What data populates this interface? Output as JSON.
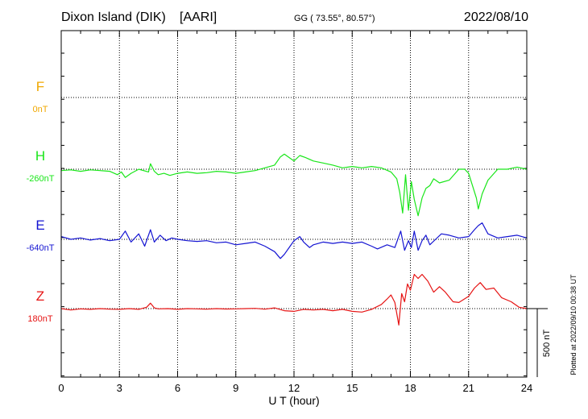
{
  "header": {
    "station": "Dixon Island (DIK)",
    "org": "[AARI]",
    "coords": "GG ( 73.55°,  80.57°)",
    "date": "2022/08/10"
  },
  "plotted_note": "Plotted at 2022/09/10 00:38 UT",
  "scale_label": "500 nT",
  "colors": {
    "F": "#f0a800",
    "H": "#19e619",
    "E": "#1414d2",
    "Z": "#e61414",
    "axis": "#000000",
    "grid": "#000000"
  },
  "chart_data": {
    "type": "line",
    "xlabel": "U T (hour)",
    "xlim": [
      0,
      24
    ],
    "x_ticks": [
      "0",
      "3",
      "6",
      "9",
      "12",
      "15",
      "18",
      "21",
      "24"
    ],
    "grid": true,
    "channels": [
      {
        "name": "F",
        "baseline": "0nT"
      },
      {
        "name": "H",
        "baseline": "-260nT"
      },
      {
        "name": "E",
        "baseline": "-640nT"
      },
      {
        "name": "Z",
        "baseline": "180nT"
      }
    ],
    "series": [
      {
        "name": "H",
        "unit": "nT",
        "x": [
          0,
          0.5,
          1,
          1.5,
          2,
          2.5,
          2.9,
          3.1,
          3.3,
          3.6,
          4,
          4.5,
          4.6,
          4.8,
          5,
          5.3,
          5.6,
          6,
          6.5,
          7,
          7.5,
          8,
          8.5,
          9,
          9.5,
          10,
          10.5,
          11,
          11.3,
          11.5,
          11.8,
          12,
          12.3,
          12.6,
          13,
          13.5,
          14,
          14.5,
          15,
          15.5,
          16,
          16.5,
          17,
          17.3,
          17.45,
          17.6,
          17.75,
          17.9,
          18.05,
          18.2,
          18.4,
          18.6,
          18.8,
          19,
          19.2,
          19.5,
          20,
          20.5,
          20.8,
          21,
          21.2,
          21.4,
          21.5,
          21.7,
          22,
          22.5,
          23,
          23.5,
          24
        ],
        "y": [
          -270,
          -265,
          -275,
          -265,
          -270,
          -275,
          -300,
          -280,
          -320,
          -290,
          -260,
          -280,
          -220,
          -275,
          -300,
          -290,
          -305,
          -290,
          -280,
          -290,
          -285,
          -275,
          -280,
          -290,
          -280,
          -270,
          -250,
          -230,
          -170,
          -150,
          -180,
          -200,
          -160,
          -175,
          -200,
          -215,
          -230,
          -250,
          -240,
          -250,
          -240,
          -250,
          -280,
          -330,
          -430,
          -580,
          -300,
          -560,
          -350,
          -480,
          -600,
          -470,
          -400,
          -380,
          -330,
          -360,
          -340,
          -260,
          -260,
          -290,
          -380,
          -470,
          -550,
          -440,
          -340,
          -260,
          -260,
          -245,
          -260
        ]
      },
      {
        "name": "E",
        "unit": "nT",
        "x": [
          0,
          0.5,
          1,
          1.5,
          2,
          2.5,
          3,
          3.3,
          3.6,
          4,
          4.3,
          4.6,
          4.8,
          5.1,
          5.4,
          5.7,
          6,
          6.5,
          7,
          7.5,
          8,
          8.5,
          9,
          9.5,
          10,
          10.5,
          11,
          11.3,
          11.5,
          11.8,
          12,
          12.3,
          12.5,
          12.8,
          13,
          13.5,
          14,
          14.5,
          15,
          15.5,
          16,
          16.3,
          16.8,
          17.2,
          17.5,
          17.7,
          17.9,
          18.05,
          18.2,
          18.4,
          18.6,
          18.8,
          19,
          19.3,
          19.6,
          20,
          20.5,
          21,
          21.3,
          21.5,
          21.7,
          22,
          22.5,
          23,
          23.5,
          24
        ],
        "y": [
          -620,
          -640,
          -630,
          -645,
          -635,
          -650,
          -640,
          -580,
          -660,
          -600,
          -690,
          -570,
          -660,
          -610,
          -650,
          -630,
          -640,
          -650,
          -655,
          -650,
          -665,
          -660,
          -680,
          -670,
          -660,
          -690,
          -730,
          -780,
          -750,
          -690,
          -650,
          -620,
          -660,
          -700,
          -680,
          -660,
          -670,
          -660,
          -670,
          -660,
          -690,
          -710,
          -680,
          -700,
          -580,
          -720,
          -650,
          -700,
          -580,
          -720,
          -650,
          -610,
          -680,
          -640,
          -600,
          -610,
          -630,
          -620,
          -570,
          -540,
          -520,
          -600,
          -630,
          -620,
          -610,
          -630
        ]
      },
      {
        "name": "Z",
        "unit": "nT",
        "x": [
          0,
          0.5,
          1,
          1.5,
          2,
          2.5,
          3,
          3.5,
          4,
          4.4,
          4.6,
          4.8,
          5,
          5.5,
          6,
          6.5,
          7,
          7.5,
          8,
          8.5,
          9,
          9.5,
          10,
          10.5,
          11,
          11.5,
          12,
          12.5,
          13,
          13.5,
          14,
          14.5,
          15,
          15.5,
          16,
          16.5,
          16.8,
          17,
          17.2,
          17.4,
          17.55,
          17.7,
          17.85,
          18,
          18.2,
          18.4,
          18.6,
          18.9,
          19.2,
          19.5,
          19.8,
          20.2,
          20.5,
          21,
          21.3,
          21.6,
          21.9,
          22.3,
          22.7,
          23.2,
          23.6,
          24
        ],
        "y": [
          180,
          170,
          178,
          175,
          180,
          176,
          175,
          180,
          175,
          190,
          220,
          185,
          178,
          180,
          175,
          180,
          178,
          176,
          180,
          177,
          178,
          180,
          182,
          176,
          185,
          165,
          160,
          175,
          170,
          175,
          165,
          175,
          160,
          155,
          175,
          210,
          250,
          280,
          225,
          60,
          290,
          230,
          360,
          315,
          430,
          400,
          430,
          380,
          300,
          340,
          300,
          230,
          225,
          270,
          330,
          370,
          320,
          330,
          260,
          230,
          190,
          180
        ]
      }
    ]
  }
}
